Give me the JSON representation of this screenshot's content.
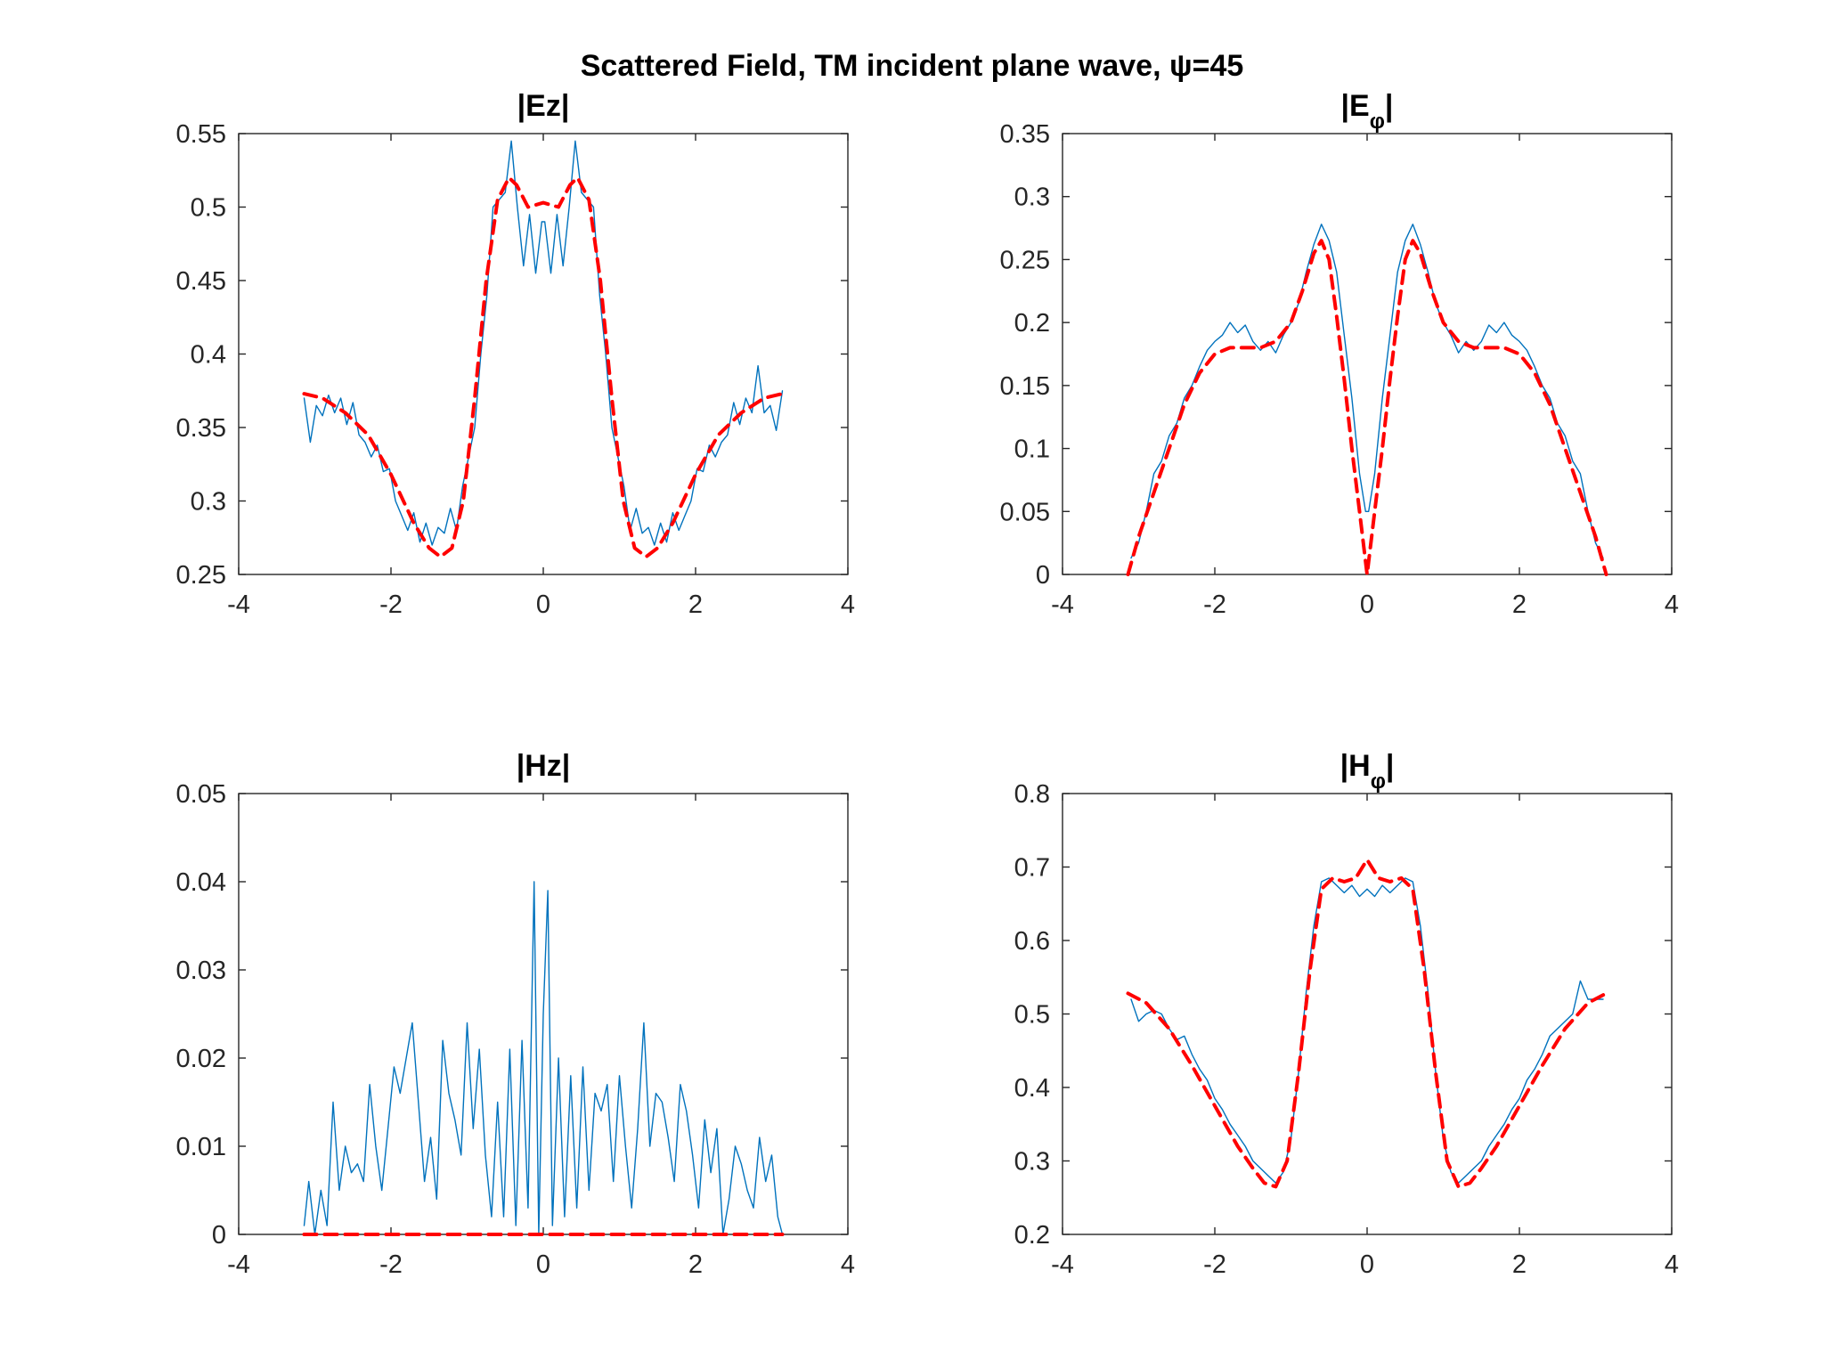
{
  "figure": {
    "title": "Scattered Field, TM incident plane wave, ψ=45"
  },
  "chart_data": [
    {
      "type": "line",
      "title_main": "|Ez|",
      "title_sub": "",
      "xlim": [
        -4,
        4
      ],
      "ylim": [
        0.25,
        0.55
      ],
      "xticks": [
        -4,
        -2,
        0,
        2,
        4
      ],
      "yticks": [
        0.25,
        0.3,
        0.35,
        0.4,
        0.45,
        0.5,
        0.55
      ],
      "grid": false,
      "series": [
        {
          "color": "#0072bd",
          "style": "solid",
          "x": [
            -3.14,
            -3.06,
            -2.98,
            -2.9,
            -2.82,
            -2.74,
            -2.66,
            -2.58,
            -2.5,
            -2.42,
            -2.34,
            -2.26,
            -2.18,
            -2.1,
            -2.02,
            -1.94,
            -1.86,
            -1.78,
            -1.7,
            -1.62,
            -1.54,
            -1.46,
            -1.38,
            -1.3,
            -1.22,
            -1.14,
            -1.06,
            -0.98,
            -0.9,
            -0.82,
            -0.74,
            -0.66,
            -0.58,
            -0.5,
            -0.42,
            -0.34,
            -0.26,
            -0.18,
            -0.1,
            -0.02,
            0.02,
            0.1,
            0.18,
            0.26,
            0.34,
            0.42,
            0.5,
            0.58,
            0.66,
            0.74,
            0.82,
            0.9,
            0.98,
            1.06,
            1.14,
            1.22,
            1.3,
            1.38,
            1.46,
            1.54,
            1.62,
            1.7,
            1.78,
            1.86,
            1.94,
            2.02,
            2.1,
            2.18,
            2.26,
            2.34,
            2.42,
            2.5,
            2.58,
            2.66,
            2.74,
            2.82,
            2.9,
            2.98,
            3.06,
            3.14
          ],
          "y": [
            0.37,
            0.34,
            0.365,
            0.358,
            0.372,
            0.36,
            0.37,
            0.352,
            0.367,
            0.345,
            0.34,
            0.33,
            0.338,
            0.32,
            0.322,
            0.3,
            0.29,
            0.28,
            0.292,
            0.272,
            0.285,
            0.27,
            0.282,
            0.278,
            0.295,
            0.28,
            0.31,
            0.33,
            0.35,
            0.4,
            0.44,
            0.5,
            0.505,
            0.51,
            0.545,
            0.5,
            0.46,
            0.495,
            0.455,
            0.49,
            0.49,
            0.455,
            0.495,
            0.46,
            0.5,
            0.545,
            0.51,
            0.505,
            0.5,
            0.44,
            0.4,
            0.35,
            0.33,
            0.31,
            0.28,
            0.295,
            0.278,
            0.282,
            0.27,
            0.285,
            0.272,
            0.292,
            0.28,
            0.29,
            0.3,
            0.322,
            0.32,
            0.338,
            0.33,
            0.34,
            0.345,
            0.367,
            0.352,
            0.37,
            0.36,
            0.392,
            0.36,
            0.365,
            0.348,
            0.375
          ]
        },
        {
          "color": "#ff0000",
          "style": "dashed",
          "x": [
            -3.14,
            -2.9,
            -2.6,
            -2.3,
            -2.0,
            -1.7,
            -1.5,
            -1.35,
            -1.2,
            -1.05,
            -0.9,
            -0.75,
            -0.6,
            -0.45,
            -0.35,
            -0.2,
            0.0,
            0.2,
            0.35,
            0.45,
            0.6,
            0.75,
            0.9,
            1.05,
            1.2,
            1.35,
            1.5,
            1.7,
            2.0,
            2.3,
            2.6,
            2.9,
            3.14
          ],
          "y": [
            0.373,
            0.37,
            0.36,
            0.345,
            0.318,
            0.285,
            0.268,
            0.262,
            0.268,
            0.3,
            0.37,
            0.45,
            0.505,
            0.52,
            0.515,
            0.5,
            0.503,
            0.5,
            0.515,
            0.52,
            0.505,
            0.45,
            0.37,
            0.3,
            0.268,
            0.262,
            0.268,
            0.285,
            0.318,
            0.345,
            0.36,
            0.37,
            0.373
          ]
        }
      ]
    },
    {
      "type": "line",
      "title_main": "|E",
      "title_sub": "φ",
      "xlim": [
        -4,
        4
      ],
      "ylim": [
        0,
        0.35
      ],
      "xticks": [
        -4,
        -2,
        0,
        2,
        4
      ],
      "yticks": [
        0,
        0.05,
        0.1,
        0.15,
        0.2,
        0.25,
        0.3,
        0.35
      ],
      "grid": false,
      "series": [
        {
          "color": "#0072bd",
          "style": "solid",
          "x": [
            -3.1,
            -3.0,
            -2.9,
            -2.8,
            -2.7,
            -2.6,
            -2.5,
            -2.4,
            -2.3,
            -2.2,
            -2.1,
            -2.0,
            -1.9,
            -1.8,
            -1.7,
            -1.6,
            -1.5,
            -1.4,
            -1.3,
            -1.2,
            -1.1,
            -1.0,
            -0.9,
            -0.8,
            -0.7,
            -0.6,
            -0.5,
            -0.4,
            -0.3,
            -0.2,
            -0.1,
            -0.02,
            0.02,
            0.1,
            0.2,
            0.3,
            0.4,
            0.5,
            0.6,
            0.7,
            0.8,
            0.9,
            1.0,
            1.1,
            1.2,
            1.3,
            1.4,
            1.5,
            1.6,
            1.7,
            1.8,
            1.9,
            2.0,
            2.1,
            2.2,
            2.3,
            2.4,
            2.5,
            2.6,
            2.7,
            2.8,
            2.9,
            3.0,
            3.1
          ],
          "y": [
            0.013,
            0.025,
            0.05,
            0.08,
            0.09,
            0.11,
            0.12,
            0.14,
            0.15,
            0.165,
            0.178,
            0.185,
            0.19,
            0.2,
            0.192,
            0.198,
            0.185,
            0.178,
            0.185,
            0.176,
            0.19,
            0.2,
            0.215,
            0.24,
            0.262,
            0.278,
            0.265,
            0.24,
            0.19,
            0.14,
            0.08,
            0.05,
            0.05,
            0.08,
            0.14,
            0.19,
            0.24,
            0.265,
            0.278,
            0.262,
            0.24,
            0.215,
            0.2,
            0.19,
            0.176,
            0.185,
            0.178,
            0.185,
            0.198,
            0.192,
            0.2,
            0.19,
            0.185,
            0.178,
            0.165,
            0.15,
            0.14,
            0.12,
            0.11,
            0.09,
            0.08,
            0.05,
            0.025,
            0.013
          ]
        },
        {
          "color": "#ff0000",
          "style": "dashed",
          "x": [
            -3.14,
            -3.0,
            -2.8,
            -2.6,
            -2.4,
            -2.2,
            -2.0,
            -1.8,
            -1.6,
            -1.4,
            -1.2,
            -1.0,
            -0.85,
            -0.7,
            -0.6,
            -0.5,
            -0.4,
            -0.3,
            -0.2,
            -0.1,
            0.0,
            0.1,
            0.2,
            0.3,
            0.4,
            0.5,
            0.6,
            0.7,
            0.85,
            1.0,
            1.2,
            1.4,
            1.6,
            1.8,
            2.0,
            2.2,
            2.4,
            2.6,
            2.8,
            3.0,
            3.14
          ],
          "y": [
            0.0,
            0.03,
            0.065,
            0.1,
            0.135,
            0.16,
            0.175,
            0.18,
            0.18,
            0.18,
            0.185,
            0.2,
            0.225,
            0.255,
            0.265,
            0.25,
            0.205,
            0.155,
            0.1,
            0.05,
            0.0,
            0.05,
            0.1,
            0.155,
            0.205,
            0.25,
            0.265,
            0.255,
            0.225,
            0.2,
            0.185,
            0.18,
            0.18,
            0.18,
            0.175,
            0.16,
            0.135,
            0.1,
            0.065,
            0.03,
            0.0
          ]
        }
      ]
    },
    {
      "type": "line",
      "title_main": "|Hz|",
      "title_sub": "",
      "xlim": [
        -4,
        4
      ],
      "ylim": [
        0,
        0.05
      ],
      "xticks": [
        -4,
        -2,
        0,
        2,
        4
      ],
      "yticks": [
        0,
        0.01,
        0.02,
        0.03,
        0.04,
        0.05
      ],
      "grid": false,
      "series": [
        {
          "color": "#0072bd",
          "style": "solid",
          "x": [
            -3.14,
            -3.08,
            -3.0,
            -2.92,
            -2.84,
            -2.76,
            -2.68,
            -2.6,
            -2.52,
            -2.44,
            -2.36,
            -2.28,
            -2.2,
            -2.12,
            -2.04,
            -1.96,
            -1.88,
            -1.8,
            -1.72,
            -1.64,
            -1.56,
            -1.48,
            -1.4,
            -1.32,
            -1.24,
            -1.16,
            -1.08,
            -1.0,
            -0.92,
            -0.84,
            -0.76,
            -0.68,
            -0.6,
            -0.52,
            -0.44,
            -0.36,
            -0.28,
            -0.2,
            -0.12,
            -0.06,
            0.0,
            0.06,
            0.12,
            0.2,
            0.28,
            0.36,
            0.44,
            0.52,
            0.6,
            0.68,
            0.76,
            0.84,
            0.92,
            1.0,
            1.08,
            1.16,
            1.24,
            1.32,
            1.4,
            1.48,
            1.56,
            1.64,
            1.72,
            1.8,
            1.88,
            1.96,
            2.04,
            2.12,
            2.2,
            2.28,
            2.36,
            2.44,
            2.52,
            2.6,
            2.68,
            2.76,
            2.84,
            2.92,
            3.0,
            3.08,
            3.14
          ],
          "y": [
            0.001,
            0.006,
            0.0,
            0.005,
            0.001,
            0.015,
            0.005,
            0.01,
            0.007,
            0.008,
            0.006,
            0.017,
            0.01,
            0.005,
            0.012,
            0.019,
            0.016,
            0.02,
            0.024,
            0.015,
            0.006,
            0.011,
            0.004,
            0.022,
            0.016,
            0.013,
            0.009,
            0.024,
            0.012,
            0.021,
            0.009,
            0.002,
            0.015,
            0.002,
            0.021,
            0.001,
            0.022,
            0.003,
            0.04,
            0.0,
            0.025,
            0.039,
            0.001,
            0.02,
            0.002,
            0.018,
            0.003,
            0.019,
            0.005,
            0.016,
            0.014,
            0.017,
            0.006,
            0.018,
            0.01,
            0.003,
            0.012,
            0.024,
            0.01,
            0.016,
            0.015,
            0.011,
            0.006,
            0.017,
            0.014,
            0.009,
            0.003,
            0.013,
            0.007,
            0.012,
            0.0,
            0.004,
            0.01,
            0.008,
            0.005,
            0.003,
            0.011,
            0.006,
            0.009,
            0.002,
            0.0
          ]
        },
        {
          "color": "#ff0000",
          "style": "dashed",
          "x": [
            -3.14,
            3.14
          ],
          "y": [
            0.0,
            0.0
          ]
        }
      ]
    },
    {
      "type": "line",
      "title_main": "|H",
      "title_sub": "φ",
      "xlim": [
        -4,
        4
      ],
      "ylim": [
        0.2,
        0.8
      ],
      "xticks": [
        -4,
        -2,
        0,
        2,
        4
      ],
      "yticks": [
        0.2,
        0.3,
        0.4,
        0.5,
        0.6,
        0.7,
        0.8
      ],
      "grid": false,
      "series": [
        {
          "color": "#0072bd",
          "style": "solid",
          "x": [
            -3.1,
            -3.0,
            -2.9,
            -2.8,
            -2.7,
            -2.6,
            -2.5,
            -2.4,
            -2.3,
            -2.2,
            -2.1,
            -2.0,
            -1.9,
            -1.8,
            -1.7,
            -1.6,
            -1.5,
            -1.4,
            -1.3,
            -1.2,
            -1.1,
            -1.0,
            -0.9,
            -0.8,
            -0.7,
            -0.6,
            -0.5,
            -0.4,
            -0.3,
            -0.2,
            -0.1,
            0.0,
            0.1,
            0.2,
            0.3,
            0.4,
            0.5,
            0.6,
            0.7,
            0.8,
            0.9,
            1.0,
            1.1,
            1.2,
            1.3,
            1.4,
            1.5,
            1.6,
            1.7,
            1.8,
            1.9,
            2.0,
            2.1,
            2.2,
            2.3,
            2.4,
            2.5,
            2.6,
            2.7,
            2.8,
            2.9,
            3.0,
            3.1
          ],
          "y": [
            0.52,
            0.49,
            0.5,
            0.505,
            0.5,
            0.48,
            0.465,
            0.47,
            0.445,
            0.425,
            0.41,
            0.385,
            0.37,
            0.35,
            0.335,
            0.32,
            0.3,
            0.29,
            0.28,
            0.27,
            0.285,
            0.33,
            0.42,
            0.53,
            0.62,
            0.68,
            0.685,
            0.675,
            0.665,
            0.675,
            0.66,
            0.67,
            0.66,
            0.675,
            0.665,
            0.675,
            0.685,
            0.68,
            0.62,
            0.53,
            0.42,
            0.33,
            0.285,
            0.27,
            0.28,
            0.29,
            0.3,
            0.32,
            0.335,
            0.35,
            0.37,
            0.385,
            0.41,
            0.425,
            0.445,
            0.47,
            0.48,
            0.49,
            0.5,
            0.545,
            0.52,
            0.52,
            0.52
          ]
        },
        {
          "color": "#ff0000",
          "style": "dashed",
          "x": [
            -3.14,
            -2.9,
            -2.6,
            -2.3,
            -2.0,
            -1.7,
            -1.5,
            -1.35,
            -1.2,
            -1.05,
            -0.9,
            -0.75,
            -0.6,
            -0.45,
            -0.3,
            -0.15,
            0.0,
            0.15,
            0.3,
            0.45,
            0.6,
            0.75,
            0.9,
            1.05,
            1.2,
            1.35,
            1.5,
            1.7,
            2.0,
            2.3,
            2.6,
            2.9,
            3.14
          ],
          "y": [
            0.528,
            0.515,
            0.48,
            0.43,
            0.375,
            0.32,
            0.29,
            0.27,
            0.265,
            0.3,
            0.42,
            0.56,
            0.67,
            0.685,
            0.68,
            0.685,
            0.71,
            0.685,
            0.68,
            0.685,
            0.67,
            0.56,
            0.42,
            0.3,
            0.265,
            0.27,
            0.29,
            0.32,
            0.375,
            0.43,
            0.48,
            0.515,
            0.528
          ]
        }
      ]
    }
  ]
}
